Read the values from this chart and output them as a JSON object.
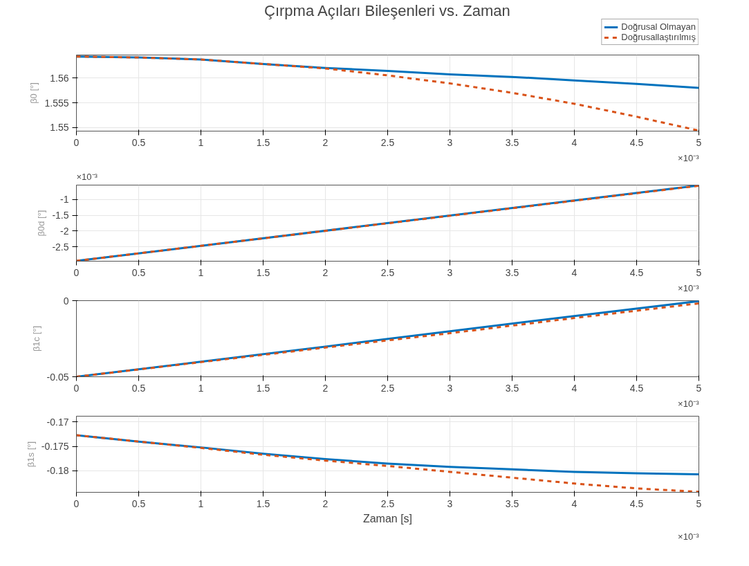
{
  "chart_data": [
    {
      "type": "line",
      "title": "Çırpma Açıları Bileşenleri vs. Zaman",
      "ylabel": "β0 [°]",
      "x": [
        0,
        0.5,
        1,
        1.5,
        2,
        2.5,
        3,
        3.5,
        4,
        4.5,
        5
      ],
      "series": [
        {
          "name": "Doğrusal Olmayan",
          "color": "#0072bd",
          "line_style": "solid",
          "values": [
            1.5643,
            1.5641,
            1.5637,
            1.5628,
            1.562,
            1.5614,
            1.5607,
            1.5602,
            1.5595,
            1.5588,
            1.558
          ]
        },
        {
          "name": "Doğrusallaştırılmış",
          "color": "#d95319",
          "line_style": "dashed",
          "values": [
            1.5643,
            1.5641,
            1.5637,
            1.5628,
            1.5619,
            1.5605,
            1.5589,
            1.557,
            1.5548,
            1.5522,
            1.5494
          ]
        }
      ],
      "xlim": [
        0,
        5
      ],
      "xticks": [
        0,
        0.5,
        1,
        1.5,
        2,
        2.5,
        3,
        3.5,
        4,
        4.5,
        5
      ],
      "ylim": [
        1.5493,
        1.5646
      ],
      "yticks": [
        1.55,
        1.555,
        1.56
      ],
      "grid": true,
      "legend": "top right",
      "annotations": [
        "×10⁻³"
      ]
    },
    {
      "type": "line",
      "ylabel": "β0d [°]",
      "x": [
        0,
        5
      ],
      "series": [
        {
          "color": "#0072bd",
          "line_style": "solid",
          "values": [
            -2.95,
            -0.55
          ]
        },
        {
          "color": "#d95319",
          "line_style": "dashed",
          "values": [
            -2.95,
            -0.56
          ]
        }
      ],
      "xlim": [
        0,
        5
      ],
      "xticks": [
        0,
        0.5,
        1,
        1.5,
        2,
        2.5,
        3,
        3.5,
        4,
        4.5,
        5
      ],
      "ylim": [
        -2.96,
        -0.54
      ],
      "yticks": [
        -2.5,
        -2,
        -1.5,
        -1
      ],
      "grid": true,
      "annotations": [
        "×10⁻³",
        "×10⁻³"
      ]
    },
    {
      "type": "line",
      "ylabel": "β1c [°]",
      "x": [
        0,
        1,
        2,
        3,
        4,
        5
      ],
      "series": [
        {
          "color": "#0072bd",
          "line_style": "solid",
          "values": [
            -0.05,
            -0.0401,
            -0.0302,
            -0.0201,
            -0.0101,
            -0.0003
          ]
        },
        {
          "color": "#d95319",
          "line_style": "dashed",
          "values": [
            -0.05,
            -0.0404,
            -0.0308,
            -0.0214,
            -0.0114,
            -0.0018
          ]
        }
      ],
      "xlim": [
        0,
        5
      ],
      "xticks": [
        0,
        0.5,
        1,
        1.5,
        2,
        2.5,
        3,
        3.5,
        4,
        4.5,
        5
      ],
      "ylim": [
        -0.05,
        0
      ],
      "yticks": [
        -0.05,
        0
      ],
      "grid": true,
      "annotations": [
        "×10⁻³"
      ]
    },
    {
      "type": "line",
      "xlabel": "Zaman [s]",
      "ylabel": "β1s [°]",
      "x": [
        0,
        0.5,
        1,
        1.5,
        2,
        2.5,
        3,
        3.5,
        4,
        4.5,
        5
      ],
      "series": [
        {
          "color": "#0072bd",
          "line_style": "solid",
          "values": [
            -0.1727,
            -0.174,
            -0.1752,
            -0.1765,
            -0.1776,
            -0.1785,
            -0.1792,
            -0.1797,
            -0.1802,
            -0.1805,
            -0.1807
          ]
        },
        {
          "color": "#d95319",
          "line_style": "dashed",
          "values": [
            -0.1727,
            -0.174,
            -0.1753,
            -0.1767,
            -0.1779,
            -0.179,
            -0.1802,
            -0.1814,
            -0.1826,
            -0.1836,
            -0.1843
          ]
        }
      ],
      "xlim": [
        0,
        5
      ],
      "xticks": [
        0,
        0.5,
        1,
        1.5,
        2,
        2.5,
        3,
        3.5,
        4,
        4.5,
        5
      ],
      "ylim": [
        -0.1844,
        -0.1688
      ],
      "yticks": [
        -0.18,
        -0.175,
        -0.17
      ],
      "grid": true,
      "annotations": [
        "×10⁻³"
      ]
    }
  ]
}
